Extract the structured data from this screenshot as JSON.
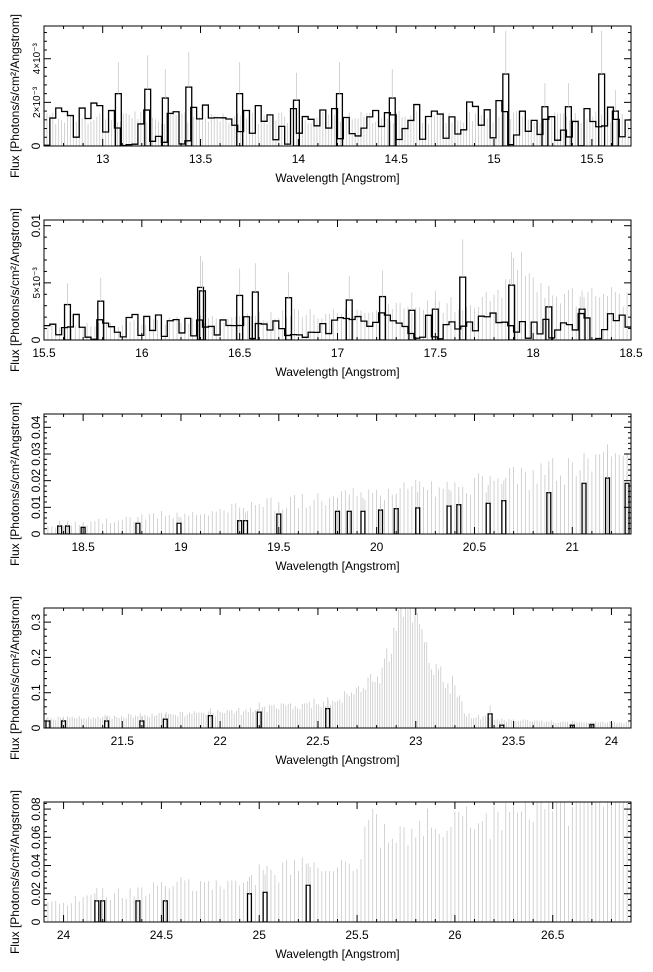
{
  "figure": {
    "xlabel": "Wavelength [Angstrom]",
    "ylabel": "Flux [Photons/s/cm²/Angstrom]"
  },
  "chart_data": [
    {
      "type": "bar",
      "xlabel": "Wavelength [Angstrom]",
      "ylabel": "Flux [Photons/s/cm²/Angstrom]",
      "xlim": [
        12.7,
        15.7
      ],
      "ylim": [
        0,
        0.0055
      ],
      "xticks": [
        13,
        13.5,
        14,
        14.5,
        15,
        15.5
      ],
      "xtick_labels": [
        "13",
        "13.5",
        "14",
        "14.5",
        "15",
        "15.5"
      ],
      "yticks": [
        0,
        0.002,
        0.004
      ],
      "ytick_labels": [
        "0",
        "2×10⁻³",
        "4×10⁻³"
      ],
      "background": {
        "model": "flat",
        "value": 0.001
      },
      "series": [
        {
          "style": "model-lines",
          "color": "#c8c8c8",
          "bin_width": 0.015,
          "peak_scale": 0.3
        },
        {
          "style": "data-histogram",
          "color": "#000000",
          "level": 0.0011,
          "amplitude": 0.0011,
          "bin_width": 0.03
        }
      ],
      "spikes": [
        [
          13.08,
          0.0024
        ],
        [
          13.23,
          0.0026
        ],
        [
          13.32,
          0.0022
        ],
        [
          13.44,
          0.0027
        ],
        [
          13.7,
          0.0024
        ],
        [
          13.99,
          0.0021
        ],
        [
          14.21,
          0.0024
        ],
        [
          14.48,
          0.0022
        ],
        [
          15.06,
          0.0033
        ],
        [
          15.26,
          0.0018
        ],
        [
          15.38,
          0.0018
        ],
        [
          15.55,
          0.0033
        ],
        [
          15.62,
          0.0016
        ]
      ]
    },
    {
      "type": "bar",
      "xlabel": "Wavelength [Angstrom]",
      "ylabel": "Flux [Photons/s/cm²/Angstrom]",
      "xlim": [
        15.5,
        18.5
      ],
      "ylim": [
        0,
        0.0105
      ],
      "xticks": [
        15.5,
        16,
        16.5,
        17,
        17.5,
        18,
        18.5
      ],
      "xtick_labels": [
        "15.5",
        "16",
        "16.5",
        "17",
        "17.5",
        "18",
        "18.5"
      ],
      "yticks": [
        0,
        0.005,
        0.01
      ],
      "ytick_labels": [
        "0",
        "5×10⁻³",
        "0.01"
      ],
      "background": {
        "model": "linear",
        "x": [
          15.5,
          18.5
        ],
        "y": [
          0.0008,
          0.0029
        ]
      },
      "series": [
        {
          "style": "model-lines",
          "color": "#c8c8c8",
          "bin_width": 0.02,
          "peak_scale": 0.3
        },
        {
          "style": "data-histogram",
          "color": "#000000",
          "level": 0.0012,
          "amplitude": 0.0012,
          "bin_width": 0.03
        }
      ],
      "features": [
        [
          17.93,
          0.0026,
          0.08
        ]
      ],
      "spikes": [
        [
          15.62,
          0.0031
        ],
        [
          15.79,
          0.0034
        ],
        [
          16.3,
          0.0046
        ],
        [
          16.31,
          0.0043
        ],
        [
          16.5,
          0.0039
        ],
        [
          16.58,
          0.0042
        ],
        [
          16.75,
          0.0037
        ],
        [
          17.06,
          0.0035
        ],
        [
          17.23,
          0.0038
        ],
        [
          17.38,
          0.0026
        ],
        [
          17.5,
          0.0027
        ],
        [
          17.64,
          0.0055
        ],
        [
          17.89,
          0.0048
        ],
        [
          18.08,
          0.0029
        ],
        [
          18.25,
          0.0027
        ]
      ]
    },
    {
      "type": "bar",
      "xlabel": "Wavelength [Angstrom]",
      "ylabel": "Flux [Photons/s/cm²/Angstrom]",
      "xlim": [
        18.3,
        21.3
      ],
      "ylim": [
        0,
        0.045
      ],
      "xticks": [
        18.5,
        19,
        19.5,
        20,
        20.5,
        21
      ],
      "xtick_labels": [
        "18.5",
        "19",
        "19.5",
        "20",
        "20.5",
        "21"
      ],
      "yticks": [
        0,
        0.01,
        0.02,
        0.03,
        0.04
      ],
      "ytick_labels": [
        "0",
        "0.01",
        "0.02",
        "0.03",
        "0.04"
      ],
      "background": {
        "model": "linear",
        "x": [
          18.3,
          21.3
        ],
        "y": [
          0.002,
          0.019
        ]
      },
      "series": [
        {
          "style": "model-lines",
          "color": "#c8c8c8",
          "bin_width": 0.02,
          "peak_scale": 0.3
        },
        {
          "style": "data-bars",
          "color": "#000000",
          "bin_width": 0.02
        }
      ],
      "features": [
        [
          20.9,
          0.002,
          0.05
        ],
        [
          21.17,
          0.003,
          0.05
        ]
      ],
      "spikes": [
        [
          18.38,
          0.003
        ],
        [
          18.42,
          0.003
        ],
        [
          18.5,
          0.0025
        ],
        [
          18.78,
          0.004
        ],
        [
          18.99,
          0.004
        ],
        [
          19.3,
          0.005
        ],
        [
          19.33,
          0.005
        ],
        [
          19.5,
          0.0075
        ],
        [
          19.8,
          0.0085
        ],
        [
          19.86,
          0.0085
        ],
        [
          19.93,
          0.0085
        ],
        [
          20.02,
          0.009
        ],
        [
          20.1,
          0.0095
        ],
        [
          20.21,
          0.0098
        ],
        [
          20.37,
          0.0105
        ],
        [
          20.42,
          0.011
        ],
        [
          20.57,
          0.0115
        ],
        [
          20.65,
          0.0125
        ],
        [
          20.88,
          0.0155
        ],
        [
          21.06,
          0.019
        ],
        [
          21.18,
          0.021
        ],
        [
          21.28,
          0.019
        ]
      ]
    },
    {
      "type": "bar",
      "xlabel": "Wavelength [Angstrom]",
      "ylabel": "Flux [Photons/s/cm²/Angstrom]",
      "xlim": [
        21.1,
        24.1
      ],
      "ylim": [
        0,
        0.34
      ],
      "xticks": [
        21.5,
        22,
        22.5,
        23,
        23.5,
        24
      ],
      "xtick_labels": [
        "21.5",
        "22",
        "22.5",
        "23",
        "23.5",
        "24"
      ],
      "yticks": [
        0,
        0.1,
        0.2,
        0.3
      ],
      "ytick_labels": [
        "0",
        "0.1",
        "0.2",
        "0.3"
      ],
      "background": {
        "model": "piecewise",
        "x": [
          21.1,
          22.0,
          22.6,
          23.2,
          23.25,
          24.1
        ],
        "y": [
          0.02,
          0.03,
          0.05,
          0.06,
          0.01,
          0.01
        ]
      },
      "series": [
        {
          "style": "model-lines",
          "color": "#c8c8c8",
          "bin_width": 0.012,
          "peak_scale": 0.3
        },
        {
          "style": "data-bars",
          "color": "#000000",
          "bin_width": 0.02
        }
      ],
      "features": [
        [
          22.96,
          0.25,
          0.09
        ]
      ],
      "spikes": [
        [
          21.12,
          0.02
        ],
        [
          21.2,
          0.02
        ],
        [
          21.42,
          0.02
        ],
        [
          21.6,
          0.02
        ],
        [
          21.72,
          0.025
        ],
        [
          21.95,
          0.035
        ],
        [
          22.2,
          0.045
        ],
        [
          22.55,
          0.055
        ],
        [
          23.38,
          0.04
        ],
        [
          23.44,
          0.008
        ],
        [
          23.8,
          0.008
        ],
        [
          23.9,
          0.01
        ]
      ]
    },
    {
      "type": "bar",
      "xlabel": "Wavelength [Angstrom]",
      "ylabel": "Flux [Photons/s/cm²/Angstrom]",
      "xlim": [
        23.9,
        26.9
      ],
      "ylim": [
        0,
        0.085
      ],
      "xticks": [
        24,
        24.5,
        25,
        25.5,
        26,
        26.5
      ],
      "xtick_labels": [
        "24",
        "24.5",
        "25",
        "25.5",
        "26",
        "26.5"
      ],
      "yticks": [
        0,
        0.02,
        0.04,
        0.06,
        0.08
      ],
      "ytick_labels": [
        "0",
        "0.02",
        "0.04",
        "0.06",
        "0.08"
      ],
      "background": {
        "model": "piecewise",
        "x": [
          23.9,
          25.5,
          25.56,
          25.7,
          26.0,
          26.65,
          26.7,
          26.9
        ],
        "y": [
          0.01,
          0.033,
          0.052,
          0.045,
          0.051,
          0.068,
          0.077,
          0.079
        ]
      },
      "series": [
        {
          "style": "model-lines",
          "color": "#c8c8c8",
          "bin_width": 0.02,
          "peak_scale": 0.3
        },
        {
          "style": "data-bars",
          "color": "#000000",
          "bin_width": 0.02
        }
      ],
      "features": [
        [
          25.88,
          0.006,
          0.04
        ]
      ],
      "spikes": [
        [
          24.17,
          0.015
        ],
        [
          24.2,
          0.015
        ],
        [
          24.38,
          0.015
        ],
        [
          24.52,
          0.015
        ],
        [
          24.95,
          0.02
        ],
        [
          25.03,
          0.021
        ],
        [
          25.25,
          0.026
        ]
      ]
    }
  ]
}
